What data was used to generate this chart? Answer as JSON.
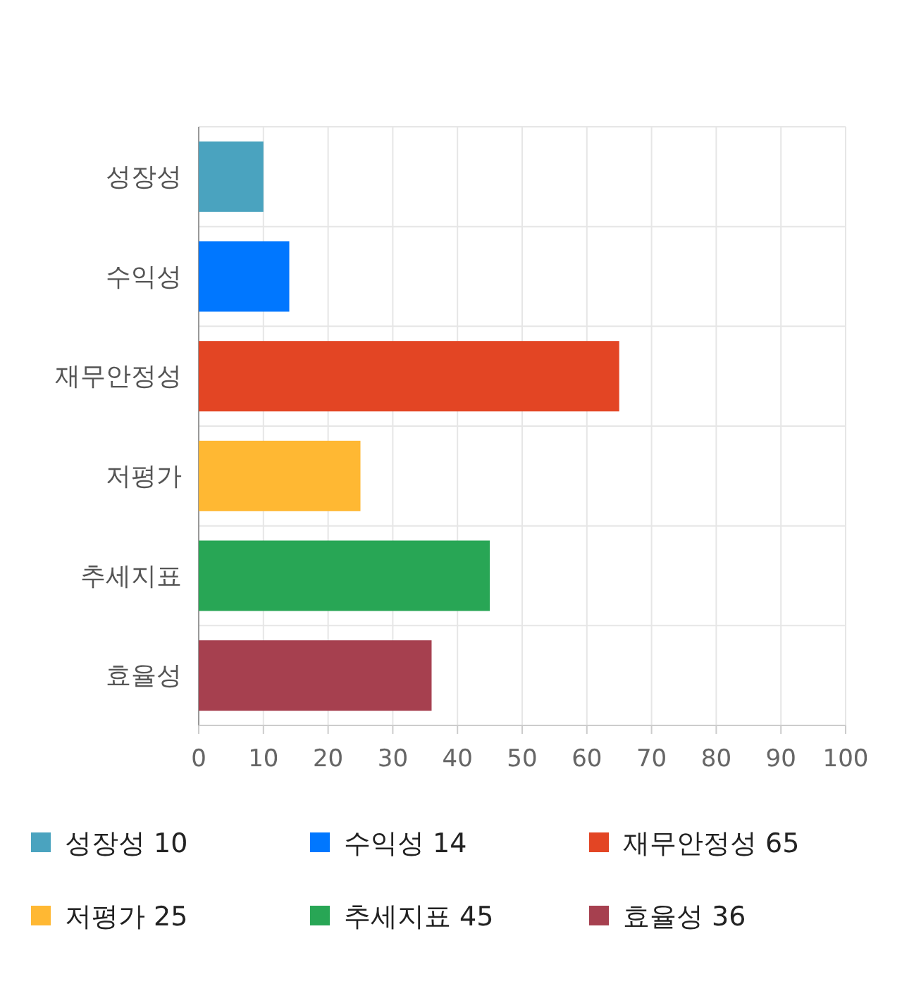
{
  "chart_data": {
    "type": "bar",
    "orientation": "horizontal",
    "stacked": true,
    "categories": [
      "성장성",
      "수익성",
      "재무안정성",
      "저평가",
      "추세지표",
      "효율성"
    ],
    "series": [
      {
        "name": "성장성 10",
        "color": "#4aa3bf",
        "values": [
          10,
          null,
          null,
          null,
          null,
          null
        ]
      },
      {
        "name": "수익성 14",
        "color": "#0077ff",
        "values": [
          null,
          14,
          null,
          null,
          null,
          null
        ]
      },
      {
        "name": "재무안정성 65",
        "color": "#e34524",
        "values": [
          null,
          null,
          65,
          null,
          null,
          null
        ]
      },
      {
        "name": "저평가 25",
        "color": "#ffb833",
        "values": [
          null,
          null,
          null,
          25,
          null,
          null
        ]
      },
      {
        "name": "추세지표 45",
        "color": "#28a655",
        "values": [
          null,
          null,
          null,
          null,
          45,
          null
        ]
      },
      {
        "name": "효율성 36",
        "color": "#a6404f",
        "values": [
          null,
          null,
          null,
          null,
          null,
          36
        ]
      }
    ],
    "xlim": [
      0,
      100
    ],
    "xticks": [
      0,
      10,
      20,
      30,
      40,
      50,
      60,
      70,
      80,
      90,
      100
    ],
    "grid": true,
    "legend": "bottom"
  }
}
